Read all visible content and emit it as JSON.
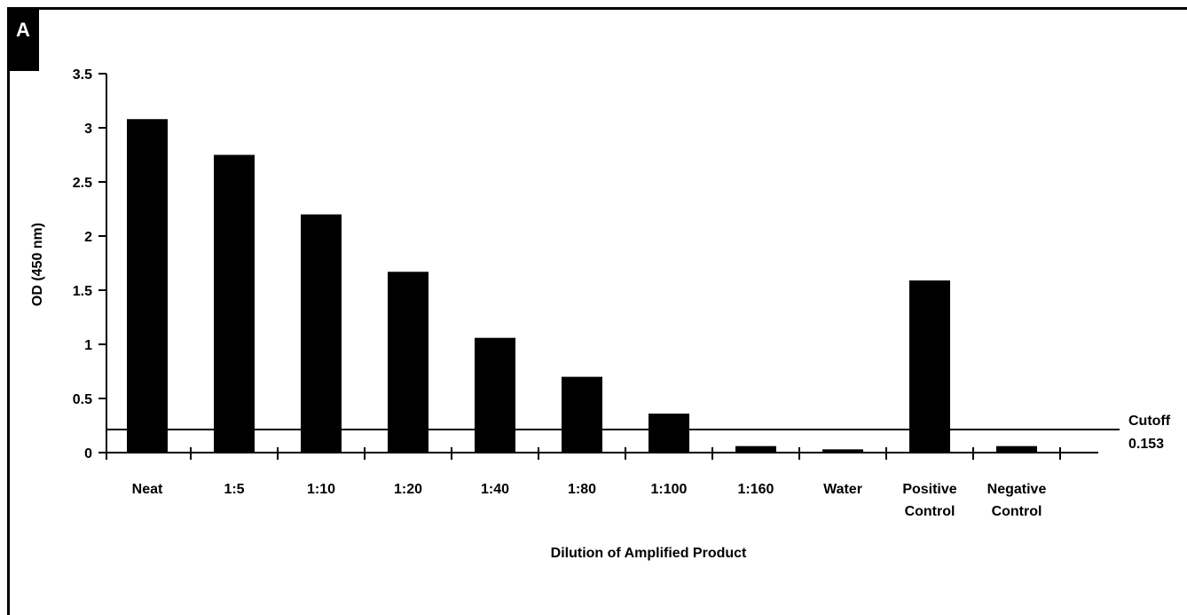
{
  "panel_label": "A",
  "chart_data": {
    "type": "bar",
    "title": "",
    "xlabel": "Dilution of Amplified Product",
    "ylabel": "OD (450 nm)",
    "ylim": [
      0,
      3.5
    ],
    "yticks": [
      "0",
      "0.5",
      "1",
      "1.5",
      "2",
      "2.5",
      "3",
      "3.5"
    ],
    "categories": [
      [
        "Neat"
      ],
      [
        "1:5"
      ],
      [
        "1:10"
      ],
      [
        "1:20"
      ],
      [
        "1:40"
      ],
      [
        "1:80"
      ],
      [
        "1:100"
      ],
      [
        "1:160"
      ],
      [
        "Water"
      ],
      [
        "Positive",
        "Control"
      ],
      [
        "Negative",
        "Control"
      ]
    ],
    "values": [
      3.08,
      2.75,
      2.2,
      1.67,
      1.06,
      0.7,
      0.36,
      0.06,
      0.03,
      1.59,
      0.06
    ],
    "bar_color": "#000000",
    "cutoff": {
      "value": 0.153,
      "label_line1": "Cutoff",
      "label_line2": "0.153"
    },
    "grid": false,
    "legend": "none"
  }
}
